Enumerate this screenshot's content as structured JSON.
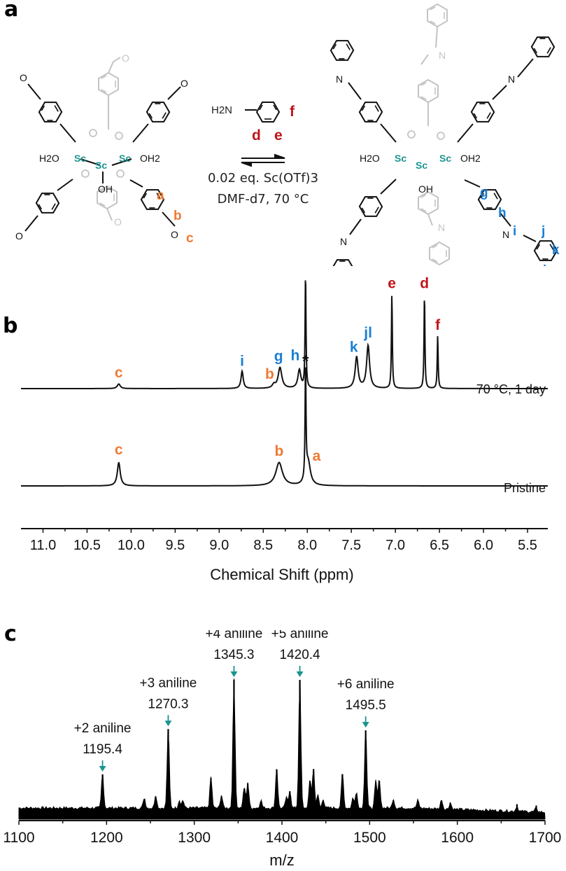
{
  "panels": {
    "a": "a",
    "b": "b",
    "c": "c"
  },
  "scheme": {
    "reagent": "H2N",
    "reagent_labels": {
      "d": "d",
      "e": "e",
      "f": "f"
    },
    "conditions_line1": "0.02 eq. Sc(OTf)3",
    "conditions_line2": "DMF-d7, 70 °C",
    "metal_label": "Sc",
    "ligand_labels": {
      "h2o": "H2O",
      "oh2": "OH2",
      "oh": "OH",
      "o": "O",
      "n": "N"
    },
    "reactant_labels": [
      "a",
      "b",
      "c"
    ],
    "product_labels": [
      "g",
      "h",
      "i",
      "j",
      "k",
      "l"
    ],
    "colors": {
      "reactant": "#ee7a33",
      "reagent": "#c0141c",
      "product": "#1a7fd4",
      "metal": "#1a948f",
      "faded": "#c4c4c4"
    }
  },
  "chart_data": [
    {
      "type": "line",
      "title": "",
      "xlabel": "Chemical Shift (ppm)",
      "ylabel": "",
      "xlim": [
        11.25,
        5.27
      ],
      "x_reversed": true,
      "xticks": [
        11.0,
        10.5,
        10.0,
        9.5,
        9.0,
        8.5,
        8.0,
        7.5,
        7.0,
        6.5,
        6.0,
        5.5
      ],
      "xtick_labels": [
        "11.0",
        "10.5",
        "10.0",
        "9.5",
        "9.0",
        "8.5",
        "8.0",
        "7.5",
        "7.0",
        "6.5",
        "6.0",
        "5.5"
      ],
      "series": [
        {
          "name": "70 °C, 1 day",
          "peaks": [
            {
              "ppm": 10.14,
              "height": 0.04,
              "width": 0.02,
              "label": "c",
              "color": "#ee7a33"
            },
            {
              "ppm": 8.74,
              "height": 0.15,
              "width": 0.015,
              "label": "i",
              "color": "#1a7fd4"
            },
            {
              "ppm": 8.38,
              "height": 0.03,
              "width": 0.02,
              "label": "b",
              "color": "#ee7a33"
            },
            {
              "ppm": 8.31,
              "height": 0.18,
              "width": 0.025,
              "label": "g",
              "color": "#1a7fd4"
            },
            {
              "ppm": 8.09,
              "height": 0.16,
              "width": 0.02,
              "label": "h",
              "color": "#1a7fd4"
            },
            {
              "ppm": 8.02,
              "height": 1.0,
              "width": 0.006,
              "label": "*",
              "color": "#111111"
            },
            {
              "ppm": 7.44,
              "height": 0.27,
              "width": 0.02,
              "label": "k",
              "color": "#1a7fd4"
            },
            {
              "ppm": 7.31,
              "height": 0.37,
              "width": 0.02,
              "label": "jl",
              "color": "#1a7fd4"
            },
            {
              "ppm": 7.04,
              "height": 0.82,
              "width": 0.006,
              "label": "e",
              "color": "#c0141c"
            },
            {
              "ppm": 6.67,
              "height": 0.82,
              "width": 0.006,
              "label": "d",
              "color": "#c0141c"
            },
            {
              "ppm": 6.52,
              "height": 0.46,
              "width": 0.006,
              "label": "f",
              "color": "#c0141c"
            }
          ]
        },
        {
          "name": "Pristine",
          "peaks": [
            {
              "ppm": 10.14,
              "height": 0.2,
              "width": 0.02,
              "label": "c",
              "color": "#ee7a33"
            },
            {
              "ppm": 8.32,
              "height": 0.2,
              "width": 0.045,
              "label": "b",
              "color": "#ee7a33"
            },
            {
              "ppm": 8.02,
              "height": 1.0,
              "width": 0.006,
              "label": "*",
              "color": "#111111"
            },
            {
              "ppm": 7.99,
              "height": 0.2,
              "width": 0.03,
              "label": "a",
              "color": "#ee7a33"
            }
          ]
        }
      ]
    },
    {
      "type": "bar",
      "title": "",
      "xlabel": "m/z",
      "ylabel": "",
      "xlim": [
        1100,
        1700
      ],
      "xticks": [
        1100,
        1200,
        1300,
        1400,
        1500,
        1600,
        1700
      ],
      "xtick_labels": [
        "1100",
        "1200",
        "1300",
        "1400",
        "1500",
        "1600",
        "1700"
      ],
      "peaks": [
        {
          "mz": 1195.4,
          "intensity": 0.27
        },
        {
          "mz": 1243,
          "intensity": 0.08
        },
        {
          "mz": 1256,
          "intensity": 0.1
        },
        {
          "mz": 1270.3,
          "intensity": 0.62
        },
        {
          "mz": 1283,
          "intensity": 0.06
        },
        {
          "mz": 1287,
          "intensity": 0.06
        },
        {
          "mz": 1319,
          "intensity": 0.24
        },
        {
          "mz": 1331,
          "intensity": 0.1
        },
        {
          "mz": 1345.3,
          "intensity": 1.0
        },
        {
          "mz": 1357,
          "intensity": 0.16
        },
        {
          "mz": 1361,
          "intensity": 0.2
        },
        {
          "mz": 1376,
          "intensity": 0.06
        },
        {
          "mz": 1394,
          "intensity": 0.31
        },
        {
          "mz": 1405,
          "intensity": 0.08
        },
        {
          "mz": 1409,
          "intensity": 0.14
        },
        {
          "mz": 1420.4,
          "intensity": 1.0
        },
        {
          "mz": 1432,
          "intensity": 0.22
        },
        {
          "mz": 1436,
          "intensity": 0.31
        },
        {
          "mz": 1441,
          "intensity": 0.1
        },
        {
          "mz": 1447,
          "intensity": 0.07
        },
        {
          "mz": 1469,
          "intensity": 0.27
        },
        {
          "mz": 1481,
          "intensity": 0.08
        },
        {
          "mz": 1485,
          "intensity": 0.12
        },
        {
          "mz": 1495.5,
          "intensity": 0.61
        },
        {
          "mz": 1507,
          "intensity": 0.21
        },
        {
          "mz": 1511,
          "intensity": 0.22
        },
        {
          "mz": 1527,
          "intensity": 0.07
        },
        {
          "mz": 1555,
          "intensity": 0.06
        },
        {
          "mz": 1582,
          "intensity": 0.07
        },
        {
          "mz": 1592,
          "intensity": 0.05
        },
        {
          "mz": 1668,
          "intensity": 0.04
        },
        {
          "mz": 1690,
          "intensity": 0.03
        }
      ],
      "annotations": [
        {
          "mz": 1195.4,
          "line1": "+2 aniline",
          "line2": "1195.4"
        },
        {
          "mz": 1270.3,
          "line1": "+3 aniline",
          "line2": "1270.3"
        },
        {
          "mz": 1345.3,
          "line1": "+4 aniline",
          "line2": "1345.3"
        },
        {
          "mz": 1420.4,
          "line1": "+5 aniline",
          "line2": "1420.4"
        },
        {
          "mz": 1495.5,
          "line1": "+6 aniline",
          "line2": "1495.5"
        }
      ],
      "arrow_color": "#1a948f"
    }
  ]
}
